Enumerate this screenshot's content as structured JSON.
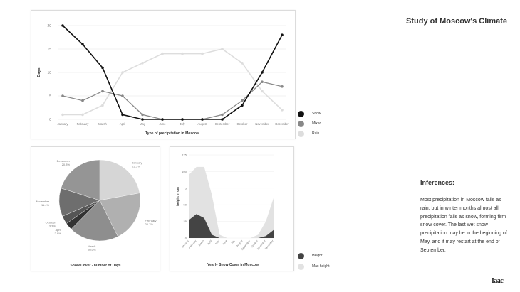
{
  "header": {
    "title": "Study of Moscow's Climate",
    "inferences_heading": "Inferences:",
    "inferences_text": "Most precipitation in Moscow falls as rain, but in winter months almost all precipitation falls as snow, forming firm snow cover. The last wet snow precipitation may be in the beginning of May, and it may restart at the end of September.",
    "logo": "Iaac"
  },
  "colors": {
    "snow": "#111111",
    "mixed": "#888888",
    "rain": "#dddddd",
    "height": "#444444",
    "max_height": "#e2e2e2"
  },
  "chart_data": [
    {
      "type": "line",
      "title": "Type of precipitation in Moscow",
      "xlabel": "",
      "ylabel": "Days",
      "categories": [
        "January",
        "February",
        "March",
        "April",
        "May",
        "June",
        "July",
        "August",
        "September",
        "October",
        "November",
        "December"
      ],
      "yticks": [
        "0",
        "5",
        "10",
        "15",
        "20"
      ],
      "ylim": [
        0,
        20
      ],
      "grid": true,
      "legend": "right",
      "series": [
        {
          "name": "Snow",
          "values": [
            20,
            16,
            11,
            1,
            0,
            0,
            0,
            0,
            0,
            3,
            10,
            18
          ]
        },
        {
          "name": "Mixed",
          "values": [
            5,
            4,
            6,
            5,
            1,
            0,
            0,
            0,
            1,
            4,
            8,
            7
          ]
        },
        {
          "name": "Rain",
          "values": [
            1,
            1,
            3,
            10,
            12,
            14,
            14,
            14,
            15,
            12,
            6,
            2
          ]
        }
      ]
    },
    {
      "type": "pie",
      "title": "Snow Cover - number of Days",
      "slices": [
        {
          "label": "January",
          "pct": "22.3%",
          "value": 22.3,
          "color": "#d6d6d6"
        },
        {
          "label": "February",
          "pct": "20.7%",
          "value": 20.7,
          "color": "#b0b0b0"
        },
        {
          "label": "March",
          "pct": "20.0%",
          "value": 20.0,
          "color": "#8e8e8e"
        },
        {
          "label": "April",
          "pct": "2.9%",
          "value": 2.9,
          "color": "#333333"
        },
        {
          "label": "October",
          "pct": "3.3%",
          "value": 3.3,
          "color": "#555555"
        },
        {
          "label": "November",
          "pct": "11.4%",
          "value": 11.4,
          "color": "#6e6e6e"
        },
        {
          "label": "December",
          "pct": "20.3%",
          "value": 20.3,
          "color": "#959595"
        }
      ]
    },
    {
      "type": "area",
      "title": "Yearly Snow Cover in Moscow",
      "ylabel": "height in cm",
      "categories": [
        "January",
        "February",
        "March",
        "April",
        "May",
        "June",
        "July",
        "August",
        "September",
        "October",
        "November",
        "December"
      ],
      "yticks": [
        "0",
        "25",
        "50",
        "75",
        "100",
        "125"
      ],
      "ylim": [
        0,
        125
      ],
      "legend": "bottom-right",
      "series": [
        {
          "name": "Max height",
          "values": [
            95,
            107,
            107,
            65,
            5,
            0,
            0,
            0,
            0,
            5,
            25,
            60
          ]
        },
        {
          "name": "Height",
          "values": [
            27,
            36,
            30,
            5,
            0,
            0,
            0,
            0,
            0,
            0,
            3,
            12
          ]
        }
      ]
    }
  ]
}
